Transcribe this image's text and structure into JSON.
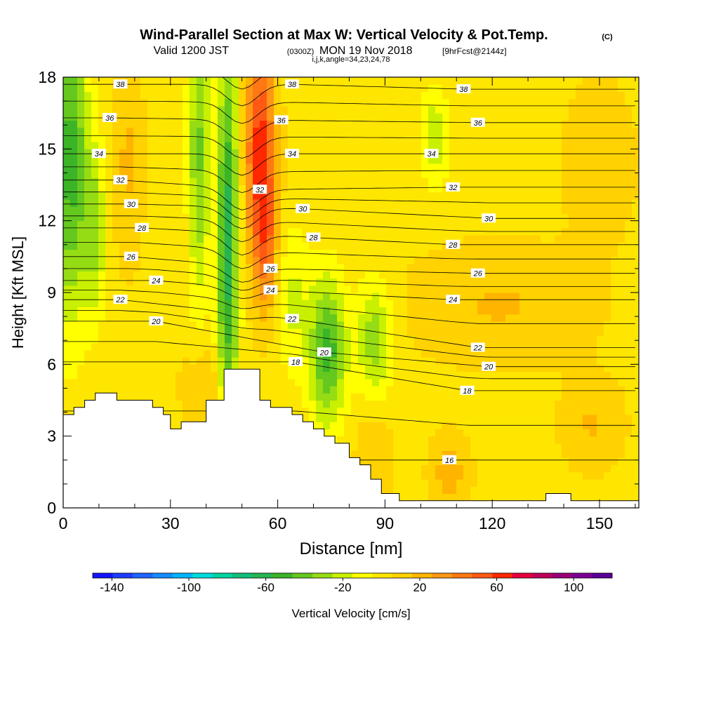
{
  "chart_data": {
    "type": "heatmap",
    "title": "Wind-Parallel Section at Max W: Vertical Velocity & Pot.Temp.",
    "title_suffix": "(C)",
    "subtitle_a": "Valid 1200 JST",
    "subtitle_b": "(0300Z)",
    "subtitle_c": "MON 19 Nov 2018",
    "subtitle_d": "[9hrFcst@2144z]",
    "subtitle2": "i,j,k,angle=34,23,24,78",
    "xlabel": "Distance [nm]",
    "ylabel": "Height [Kft MSL]",
    "xlim": [
      0,
      161
    ],
    "ylim": [
      0,
      18
    ],
    "x_ticks": [
      "0",
      "30",
      "60",
      "90",
      "120",
      "150"
    ],
    "y_ticks": [
      "0",
      "3",
      "6",
      "9",
      "12",
      "15",
      "18"
    ],
    "colorbar": {
      "label": "Vertical Velocity [cm/s]",
      "ticks": [
        "-140",
        "-100",
        "-60",
        "-20",
        "20",
        "60",
        "100"
      ],
      "range": [
        -150,
        120
      ],
      "colors": [
        "#1414ff",
        "#1e3cff",
        "#1e64ff",
        "#148cff",
        "#00b4ff",
        "#00dcdc",
        "#00d2a0",
        "#14be78",
        "#28b450",
        "#3cb428",
        "#64c81e",
        "#96dc14",
        "#c8f000",
        "#ffff00",
        "#ffe600",
        "#ffd200",
        "#ffb400",
        "#ff9614",
        "#ff7814",
        "#ff5a14",
        "#ff2800",
        "#e6003c",
        "#be005a",
        "#9b0078",
        "#7d0096",
        "#5a0096"
      ]
    },
    "theta_labels": [
      {
        "x": 16,
        "z": 17.7,
        "text": "38"
      },
      {
        "x": 64,
        "z": 17.7,
        "text": "38"
      },
      {
        "x": 112,
        "z": 17.5,
        "text": "38"
      },
      {
        "x": 13,
        "z": 16.3,
        "text": "36"
      },
      {
        "x": 61,
        "z": 16.2,
        "text": "36"
      },
      {
        "x": 116,
        "z": 16.1,
        "text": "36"
      },
      {
        "x": 10,
        "z": 14.8,
        "text": "34"
      },
      {
        "x": 64,
        "z": 14.8,
        "text": "34"
      },
      {
        "x": 103,
        "z": 14.8,
        "text": "34"
      },
      {
        "x": 16,
        "z": 13.7,
        "text": "32"
      },
      {
        "x": 55,
        "z": 13.3,
        "text": "32"
      },
      {
        "x": 109,
        "z": 13.4,
        "text": "32"
      },
      {
        "x": 19,
        "z": 12.7,
        "text": "30"
      },
      {
        "x": 67,
        "z": 12.5,
        "text": "30"
      },
      {
        "x": 119,
        "z": 12.1,
        "text": "30"
      },
      {
        "x": 22,
        "z": 11.7,
        "text": "28"
      },
      {
        "x": 70,
        "z": 11.3,
        "text": "28"
      },
      {
        "x": 109,
        "z": 11.0,
        "text": "28"
      },
      {
        "x": 19,
        "z": 10.5,
        "text": "26"
      },
      {
        "x": 58,
        "z": 10.0,
        "text": "26"
      },
      {
        "x": 116,
        "z": 9.8,
        "text": "26"
      },
      {
        "x": 26,
        "z": 9.5,
        "text": "24"
      },
      {
        "x": 58,
        "z": 9.1,
        "text": "24"
      },
      {
        "x": 109,
        "z": 8.7,
        "text": "24"
      },
      {
        "x": 16,
        "z": 8.7,
        "text": "22"
      },
      {
        "x": 64,
        "z": 7.9,
        "text": "22"
      },
      {
        "x": 116,
        "z": 6.7,
        "text": "22"
      },
      {
        "x": 26,
        "z": 7.8,
        "text": "20"
      },
      {
        "x": 73,
        "z": 6.5,
        "text": "20"
      },
      {
        "x": 119,
        "z": 5.9,
        "text": "20"
      },
      {
        "x": 65,
        "z": 6.1,
        "text": "18"
      },
      {
        "x": 113,
        "z": 4.9,
        "text": "18"
      },
      {
        "x": 108,
        "z": 2.0,
        "text": "16"
      }
    ],
    "terrain_profile": [
      [
        0,
        3.9
      ],
      [
        3,
        3.9
      ],
      [
        3,
        4.2
      ],
      [
        6,
        4.2
      ],
      [
        6,
        4.5
      ],
      [
        9,
        4.5
      ],
      [
        9,
        4.8
      ],
      [
        15,
        4.8
      ],
      [
        15,
        4.5
      ],
      [
        25,
        4.5
      ],
      [
        25,
        4.2
      ],
      [
        28,
        4.2
      ],
      [
        28,
        3.9
      ],
      [
        30,
        3.9
      ],
      [
        30,
        3.3
      ],
      [
        33,
        3.3
      ],
      [
        33,
        3.6
      ],
      [
        40,
        3.6
      ],
      [
        40,
        4.5
      ],
      [
        45,
        4.5
      ],
      [
        45,
        5.8
      ],
      [
        55,
        5.8
      ],
      [
        55,
        4.5
      ],
      [
        58,
        4.5
      ],
      [
        58,
        4.2
      ],
      [
        64,
        4.2
      ],
      [
        64,
        3.9
      ],
      [
        67,
        3.9
      ],
      [
        67,
        3.6
      ],
      [
        70,
        3.6
      ],
      [
        70,
        3.3
      ],
      [
        73,
        3.3
      ],
      [
        73,
        3.0
      ],
      [
        76,
        3.0
      ],
      [
        76,
        2.7
      ],
      [
        80,
        2.7
      ],
      [
        80,
        2.1
      ],
      [
        83,
        2.1
      ],
      [
        83,
        1.8
      ],
      [
        86,
        1.8
      ],
      [
        86,
        1.2
      ],
      [
        89,
        1.2
      ],
      [
        89,
        0.6
      ],
      [
        94,
        0.6
      ],
      [
        94,
        0.3
      ],
      [
        135,
        0.3
      ],
      [
        135,
        0.6
      ],
      [
        142,
        0.6
      ],
      [
        142,
        0.3
      ],
      [
        161,
        0.3
      ],
      [
        161,
        0
      ],
      [
        0,
        0
      ]
    ],
    "w_features": [
      {
        "x": 2,
        "z": 14.5,
        "rx": 5,
        "rz": 6.5,
        "w": -55
      },
      {
        "x": 9,
        "z": 11.5,
        "rx": 3,
        "rz": 3.5,
        "w": -30
      },
      {
        "x": 18,
        "z": 14.5,
        "rx": 4,
        "rz": 4,
        "w": 15
      },
      {
        "x": 38,
        "z": 15.0,
        "rx": 3,
        "rz": 6.5,
        "w": -40
      },
      {
        "x": 46,
        "z": 11.0,
        "rx": 3,
        "rz": 8.5,
        "w": -65
      },
      {
        "x": 55,
        "z": 15.0,
        "rx": 4,
        "rz": 4.5,
        "w": 60
      },
      {
        "x": 57,
        "z": 11.0,
        "rx": 3.5,
        "rz": 3,
        "w": 30
      },
      {
        "x": 64,
        "z": 8.8,
        "rx": 5,
        "rz": 3.2,
        "w": -20
      },
      {
        "x": 74,
        "z": 6.6,
        "rx": 5,
        "rz": 3,
        "w": -55
      },
      {
        "x": 87,
        "z": 7.0,
        "rx": 5,
        "rz": 2.5,
        "w": -35
      },
      {
        "x": 104,
        "z": 15.5,
        "rx": 4,
        "rz": 2.2,
        "w": -25
      },
      {
        "x": 122,
        "z": 8.5,
        "rx": 24,
        "rz": 2.3,
        "w": 14
      },
      {
        "x": 108,
        "z": 1.5,
        "rx": 5,
        "rz": 1.5,
        "w": 20
      },
      {
        "x": 87,
        "z": 2.2,
        "rx": 5,
        "rz": 2.2,
        "w": 14
      },
      {
        "x": 148,
        "z": 3.5,
        "rx": 8,
        "rz": 1.8,
        "w": 14
      },
      {
        "x": 40,
        "z": 5.0,
        "rx": 6,
        "rz": 1.8,
        "w": 16
      },
      {
        "x": 150,
        "z": 14.5,
        "rx": 9,
        "rz": 3,
        "w": 12
      }
    ]
  }
}
